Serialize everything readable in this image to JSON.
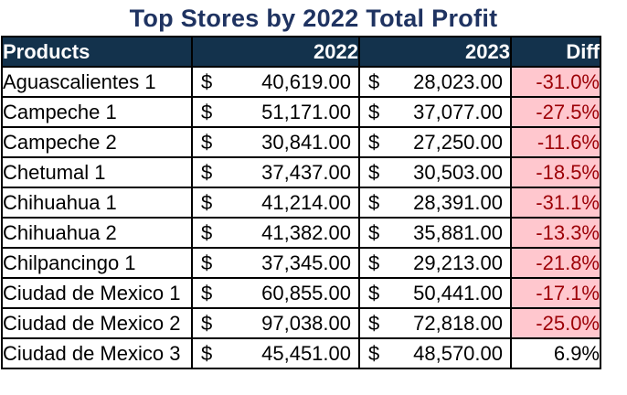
{
  "title": "Top Stores by 2022 Total Profit",
  "headers": {
    "products": "Products",
    "y2022": "2022",
    "y2023": "2023",
    "diff": "Diff"
  },
  "currency_symbol": "$",
  "colors": {
    "title": "#1f3361",
    "header_bg": "#13324c",
    "header_text": "#ffffff",
    "negative_fill": "#ffc7ce",
    "negative_text": "#9c0006"
  },
  "rows": [
    {
      "name": "Aguascalientes 1",
      "v2022": "40,619.00",
      "v2023": "28,023.00",
      "diff": "-31.0%",
      "negative": true
    },
    {
      "name": "Campeche 1",
      "v2022": "51,171.00",
      "v2023": "37,077.00",
      "diff": "-27.5%",
      "negative": true
    },
    {
      "name": "Campeche 2",
      "v2022": "30,841.00",
      "v2023": "27,250.00",
      "diff": "-11.6%",
      "negative": true
    },
    {
      "name": "Chetumal 1",
      "v2022": "37,437.00",
      "v2023": "30,503.00",
      "diff": "-18.5%",
      "negative": true
    },
    {
      "name": "Chihuahua 1",
      "v2022": "41,214.00",
      "v2023": "28,391.00",
      "diff": "-31.1%",
      "negative": true
    },
    {
      "name": "Chihuahua 2",
      "v2022": "41,382.00",
      "v2023": "35,881.00",
      "diff": "-13.3%",
      "negative": true
    },
    {
      "name": "Chilpancingo 1",
      "v2022": "37,345.00",
      "v2023": "29,213.00",
      "diff": "-21.8%",
      "negative": true
    },
    {
      "name": "Ciudad de Mexico 1",
      "v2022": "60,855.00",
      "v2023": "50,441.00",
      "diff": "-17.1%",
      "negative": true
    },
    {
      "name": "Ciudad de Mexico 2",
      "v2022": "97,038.00",
      "v2023": "72,818.00",
      "diff": "-25.0%",
      "negative": true
    },
    {
      "name": "Ciudad de Mexico 3",
      "v2022": "45,451.00",
      "v2023": "48,570.00",
      "diff": "6.9%",
      "negative": false
    }
  ]
}
